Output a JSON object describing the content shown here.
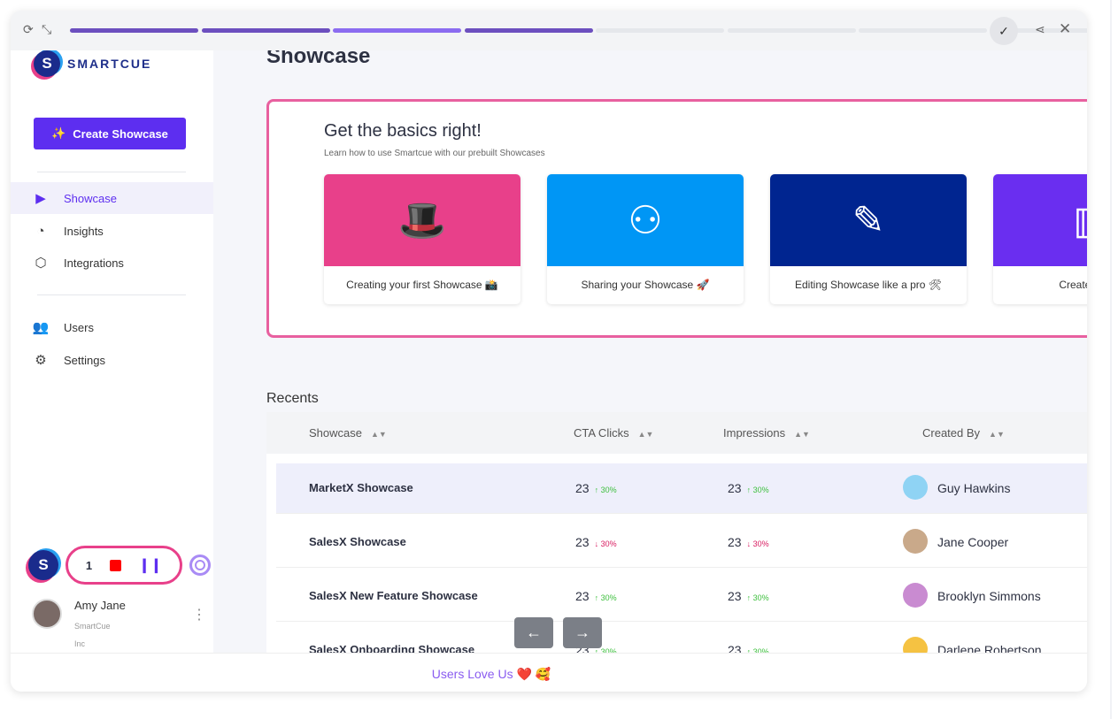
{
  "topbar": {
    "icons": [
      "refresh-icon",
      "collapse-icon",
      "check-icon",
      "share-icon",
      "close-icon"
    ],
    "progress": {
      "total_steps": 8,
      "completed_steps": 4,
      "current_step": 3
    },
    "colors": {
      "done": "#6c4fbf",
      "current": "#8b6cf0",
      "todo": "#e5e7eb"
    }
  },
  "sidebar": {
    "logo": "SMARTCUE",
    "create_label": "Create Showcase",
    "items": [
      {
        "label": "Showcase",
        "icon": "play-icon",
        "active": true
      },
      {
        "label": "Insights",
        "icon": "chart-icon"
      },
      {
        "label": "Integrations",
        "icon": "integrations-icon"
      },
      {
        "label": "Users",
        "icon": "users-icon"
      },
      {
        "label": "Settings",
        "icon": "gear-icon"
      }
    ],
    "recorder": {
      "count": "1"
    },
    "user": {
      "name": "Amy Jane",
      "org1": "SmartCue",
      "org2": "Inc"
    }
  },
  "main": {
    "title": "Showcase",
    "basics": {
      "heading": "Get the basics right!",
      "subheading": "Learn how to use Smartcue with our prebuilt Showcases",
      "cards": [
        {
          "label": "Creating your first Showcase 📸",
          "color": "#e8408a",
          "icon": "magic-hat-icon"
        },
        {
          "label": "Sharing your Showcase 🚀",
          "color": "#0096f5",
          "icon": "share-people-icon"
        },
        {
          "label": "Editing Showcase like a pro 🛠",
          "color": "#002590",
          "icon": "tools-icon"
        },
        {
          "label": "Create showc",
          "color": "#6a2ef0",
          "icon": "chart-icon"
        }
      ]
    },
    "recents": {
      "title": "Recents",
      "columns": [
        "Showcase",
        "CTA Clicks",
        "Impressions",
        "Created By"
      ],
      "rows": [
        {
          "name": "MarketX Showcase",
          "cta": "23",
          "cta_delta": "30%",
          "cta_dir": "up",
          "imp": "23",
          "imp_delta": "30%",
          "imp_dir": "up",
          "creator": "Guy Hawkins"
        },
        {
          "name": "SalesX Showcase",
          "cta": "23",
          "cta_delta": "30%",
          "cta_dir": "down",
          "imp": "23",
          "imp_delta": "30%",
          "imp_dir": "down",
          "creator": "Jane Cooper"
        },
        {
          "name": "SalesX New Feature Showcase",
          "cta": "23",
          "cta_delta": "30%",
          "cta_dir": "up",
          "imp": "23",
          "imp_delta": "30%",
          "imp_dir": "up",
          "creator": "Brooklyn Simmons"
        },
        {
          "name": "SalesX Onboarding Showcase",
          "cta": "23",
          "cta_delta": "30%",
          "cta_dir": "up",
          "imp": "23",
          "imp_delta": "30%",
          "imp_dir": "up",
          "creator": "Darlene Robertson"
        }
      ]
    }
  },
  "footer": {
    "text": "Users Love Us ❤️ 🥰"
  }
}
